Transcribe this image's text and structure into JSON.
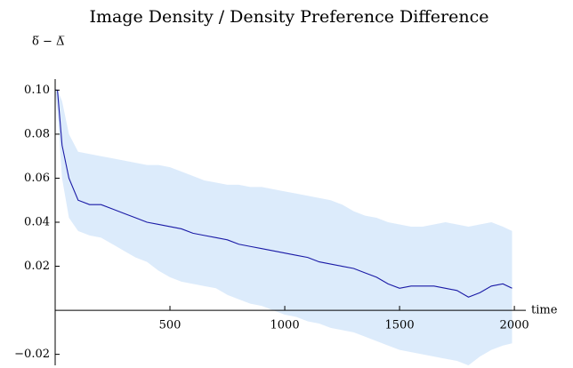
{
  "chart_data": {
    "type": "line",
    "title": "Image Density / Density Preference Difference",
    "ylabel": "δ̅ − Δ̅",
    "xlabel": "time",
    "x": [
      0,
      10,
      30,
      60,
      100,
      150,
      200,
      250,
      300,
      350,
      400,
      450,
      500,
      550,
      600,
      650,
      700,
      750,
      800,
      850,
      900,
      950,
      1000,
      1050,
      1100,
      1150,
      1200,
      1250,
      1300,
      1350,
      1400,
      1450,
      1500,
      1550,
      1600,
      1650,
      1700,
      1750,
      1800,
      1850,
      1900,
      1950,
      1990
    ],
    "values": [
      0.1,
      0.1,
      0.075,
      0.06,
      0.05,
      0.048,
      0.048,
      0.046,
      0.044,
      0.042,
      0.04,
      0.039,
      0.038,
      0.037,
      0.035,
      0.034,
      0.033,
      0.032,
      0.03,
      0.029,
      0.028,
      0.027,
      0.026,
      0.025,
      0.024,
      0.022,
      0.021,
      0.02,
      0.019,
      0.017,
      0.015,
      0.012,
      0.01,
      0.011,
      0.011,
      0.011,
      0.01,
      0.009,
      0.006,
      0.008,
      0.011,
      0.012,
      0.01
    ],
    "color": "#1a1aa6",
    "band": {
      "color": "#dcebfb",
      "upper": [
        0.1,
        0.1,
        0.095,
        0.08,
        0.072,
        0.071,
        0.07,
        0.069,
        0.068,
        0.067,
        0.066,
        0.066,
        0.065,
        0.063,
        0.061,
        0.059,
        0.058,
        0.057,
        0.057,
        0.056,
        0.056,
        0.055,
        0.054,
        0.053,
        0.052,
        0.051,
        0.05,
        0.048,
        0.045,
        0.043,
        0.042,
        0.04,
        0.039,
        0.038,
        0.038,
        0.039,
        0.04,
        0.039,
        0.038,
        0.039,
        0.04,
        0.038,
        0.036
      ],
      "lower": [
        0.1,
        0.09,
        0.06,
        0.042,
        0.036,
        0.034,
        0.033,
        0.03,
        0.027,
        0.024,
        0.022,
        0.018,
        0.015,
        0.013,
        0.012,
        0.011,
        0.01,
        0.007,
        0.005,
        0.003,
        0.002,
        0.0,
        -0.002,
        -0.003,
        -0.005,
        -0.006,
        -0.008,
        -0.009,
        -0.01,
        -0.012,
        -0.014,
        -0.016,
        -0.018,
        -0.019,
        -0.02,
        -0.021,
        -0.022,
        -0.023,
        -0.025,
        -0.021,
        -0.018,
        -0.016,
        -0.015
      ]
    },
    "xlim": [
      0,
      2050
    ],
    "ylim": [
      -0.025,
      0.105
    ],
    "xticks": [
      500,
      1000,
      1500,
      2000
    ],
    "yticks": [
      {
        "value": -0.02,
        "label": "−0.02"
      },
      0.02,
      0.04,
      0.06,
      0.08,
      {
        "value": 0.1,
        "label": "0.10"
      }
    ],
    "grid": false
  }
}
